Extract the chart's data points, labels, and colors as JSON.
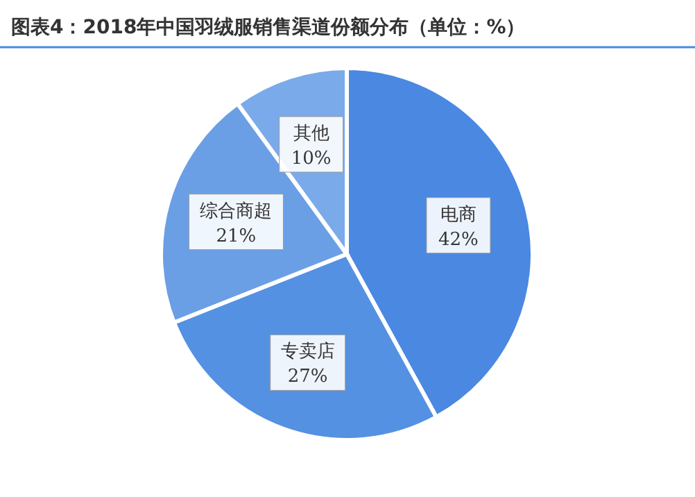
{
  "chart_data": {
    "type": "pie",
    "title": "图表4：2018年中国羽绒服销售渠道份额分布（单位：%）",
    "categories": [
      "电商",
      "专卖店",
      "综合商超",
      "其他"
    ],
    "values": [
      42,
      27,
      21,
      10
    ],
    "colors": [
      "#4a88e2",
      "#5591e2",
      "#6a9fe6",
      "#7aaaea"
    ],
    "value_labels": [
      "42%",
      "27%",
      "21%",
      "10%"
    ]
  }
}
